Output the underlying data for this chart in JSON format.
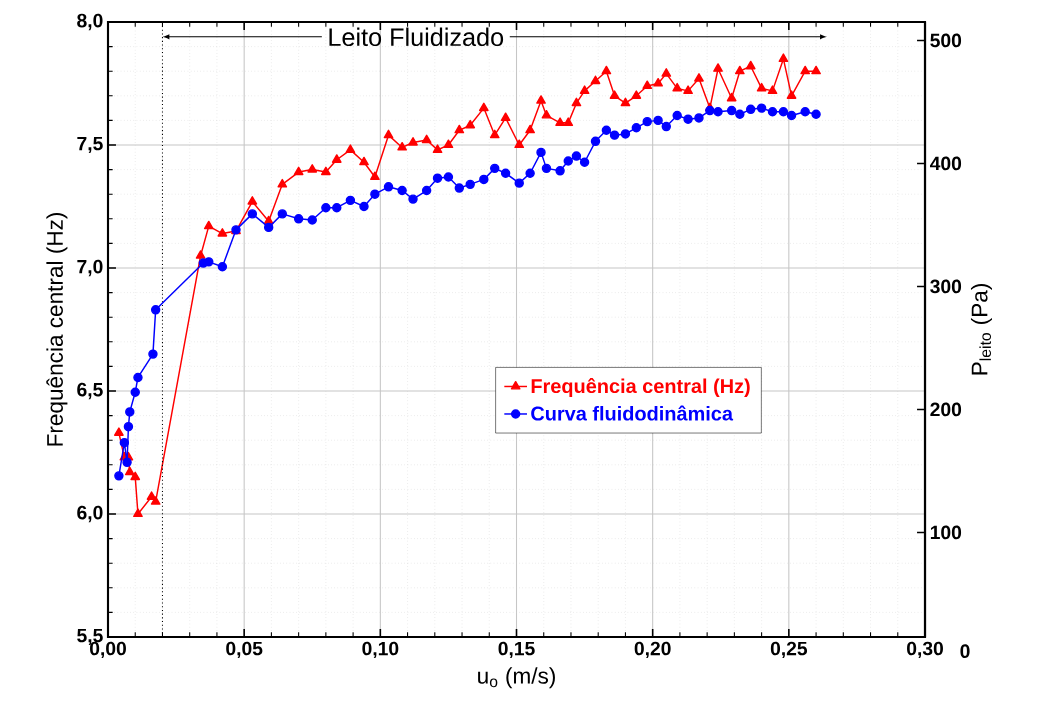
{
  "chart_data": {
    "type": "line",
    "xlabel": "u$_{o}$ (m/s)",
    "ylabel": "Frequência central (Hz)",
    "y2label": "P$_{leito}$ (Pa)",
    "series": [
      {
        "name": "Frequência central (Hz)",
        "color": "#ff0000",
        "marker": "triangle",
        "line_style": "solid",
        "x": [
          0.004,
          0.006,
          0.0075,
          0.008,
          0.01,
          0.011,
          0.016,
          0.0175,
          0.034,
          0.037,
          0.042,
          0.047,
          0.053,
          0.059,
          0.064,
          0.07,
          0.075,
          0.08,
          0.084,
          0.089,
          0.094,
          0.098,
          0.103,
          0.108,
          0.112,
          0.117,
          0.121,
          0.125,
          0.129,
          0.133,
          0.138,
          0.142,
          0.146,
          0.151,
          0.155,
          0.159,
          0.161,
          0.166,
          0.169,
          0.172,
          0.175,
          0.179,
          0.183,
          0.186,
          0.19,
          0.194,
          0.198,
          0.202,
          0.205,
          0.209,
          0.213,
          0.217,
          0.221,
          0.224,
          0.229,
          0.232,
          0.236,
          0.24,
          0.244,
          0.248,
          0.251,
          0.256,
          0.26
        ],
        "values": [
          6.33,
          6.23,
          6.23,
          6.17,
          6.15,
          6.0,
          6.07,
          6.05,
          7.05,
          7.17,
          7.14,
          7.15,
          7.27,
          7.19,
          7.34,
          7.39,
          7.4,
          7.39,
          7.44,
          7.48,
          7.43,
          7.37,
          7.54,
          7.49,
          7.51,
          7.52,
          7.48,
          7.5,
          7.56,
          7.58,
          7.65,
          7.54,
          7.61,
          7.5,
          7.56,
          7.68,
          7.62,
          7.59,
          7.59,
          7.67,
          7.72,
          7.76,
          7.8,
          7.7,
          7.67,
          7.7,
          7.74,
          7.75,
          7.79,
          7.73,
          7.72,
          7.77,
          7.65,
          7.81,
          7.69,
          7.8,
          7.82,
          7.73,
          7.72,
          7.85,
          7.7,
          7.8,
          7.8
        ]
      },
      {
        "name": "Curva fluidodinâmica",
        "color": "#0000ff",
        "marker": "circle",
        "line_style": "solid",
        "axis": "y2",
        "x": [
          0.004,
          0.006,
          0.007,
          0.0075,
          0.008,
          0.01,
          0.011,
          0.0165,
          0.0175,
          0.035,
          0.037,
          0.042,
          0.047,
          0.053,
          0.059,
          0.064,
          0.07,
          0.075,
          0.08,
          0.084,
          0.089,
          0.094,
          0.098,
          0.103,
          0.108,
          0.112,
          0.117,
          0.121,
          0.125,
          0.129,
          0.133,
          0.138,
          0.142,
          0.146,
          0.151,
          0.155,
          0.159,
          0.161,
          0.166,
          0.169,
          0.172,
          0.175,
          0.179,
          0.183,
          0.186,
          0.19,
          0.194,
          0.198,
          0.202,
          0.205,
          0.209,
          0.213,
          0.217,
          0.221,
          0.224,
          0.229,
          0.232,
          0.236,
          0.24,
          0.244,
          0.248,
          0.251,
          0.256,
          0.26
        ],
        "values": [
          146,
          173,
          157,
          186,
          198,
          214,
          226,
          245,
          281,
          319,
          320,
          316,
          346,
          359,
          348,
          359,
          355,
          354,
          364,
          364,
          370,
          365,
          375,
          381,
          378,
          371,
          378,
          388,
          389,
          380,
          383,
          387,
          396,
          392,
          384,
          392,
          409,
          396,
          394,
          402,
          406,
          401,
          418,
          427,
          423,
          424,
          429,
          434,
          435,
          430,
          439,
          436,
          437,
          443,
          442,
          443,
          440,
          444,
          445,
          442,
          442,
          439,
          442,
          440
        ]
      }
    ],
    "xlim": [
      0,
      0.3
    ],
    "xticks": [
      {
        "value": 0,
        "label": "0,00"
      },
      {
        "value": 0.05,
        "label": "0,05"
      },
      {
        "value": 0.1,
        "label": "0,10"
      },
      {
        "value": 0.15,
        "label": "0,15"
      },
      {
        "value": 0.2,
        "label": "0,20"
      },
      {
        "value": 0.25,
        "label": "0,25"
      },
      {
        "value": 0.3,
        "label": "0,30"
      }
    ],
    "ylim": [
      5.5,
      8.0
    ],
    "yticks": [
      {
        "value": 5.5,
        "label": "5,5"
      },
      {
        "value": 6.0,
        "label": "6,0"
      },
      {
        "value": 6.5,
        "label": "6,5"
      },
      {
        "value": 7.0,
        "label": "7,0"
      },
      {
        "value": 7.5,
        "label": "7,5"
      },
      {
        "value": 8.0,
        "label": "8,0"
      }
    ],
    "y2lim": [
      15,
      515
    ],
    "y2ticks": [
      100,
      200,
      300,
      400,
      500
    ],
    "ref_lines": [
      {
        "axis": "x",
        "value": 0.02,
        "label": "Leito Fluidizado",
        "line_style": "dotted",
        "color": "#000000"
      }
    ],
    "annotations": [
      "0"
    ],
    "grid": true,
    "legend": "center"
  }
}
